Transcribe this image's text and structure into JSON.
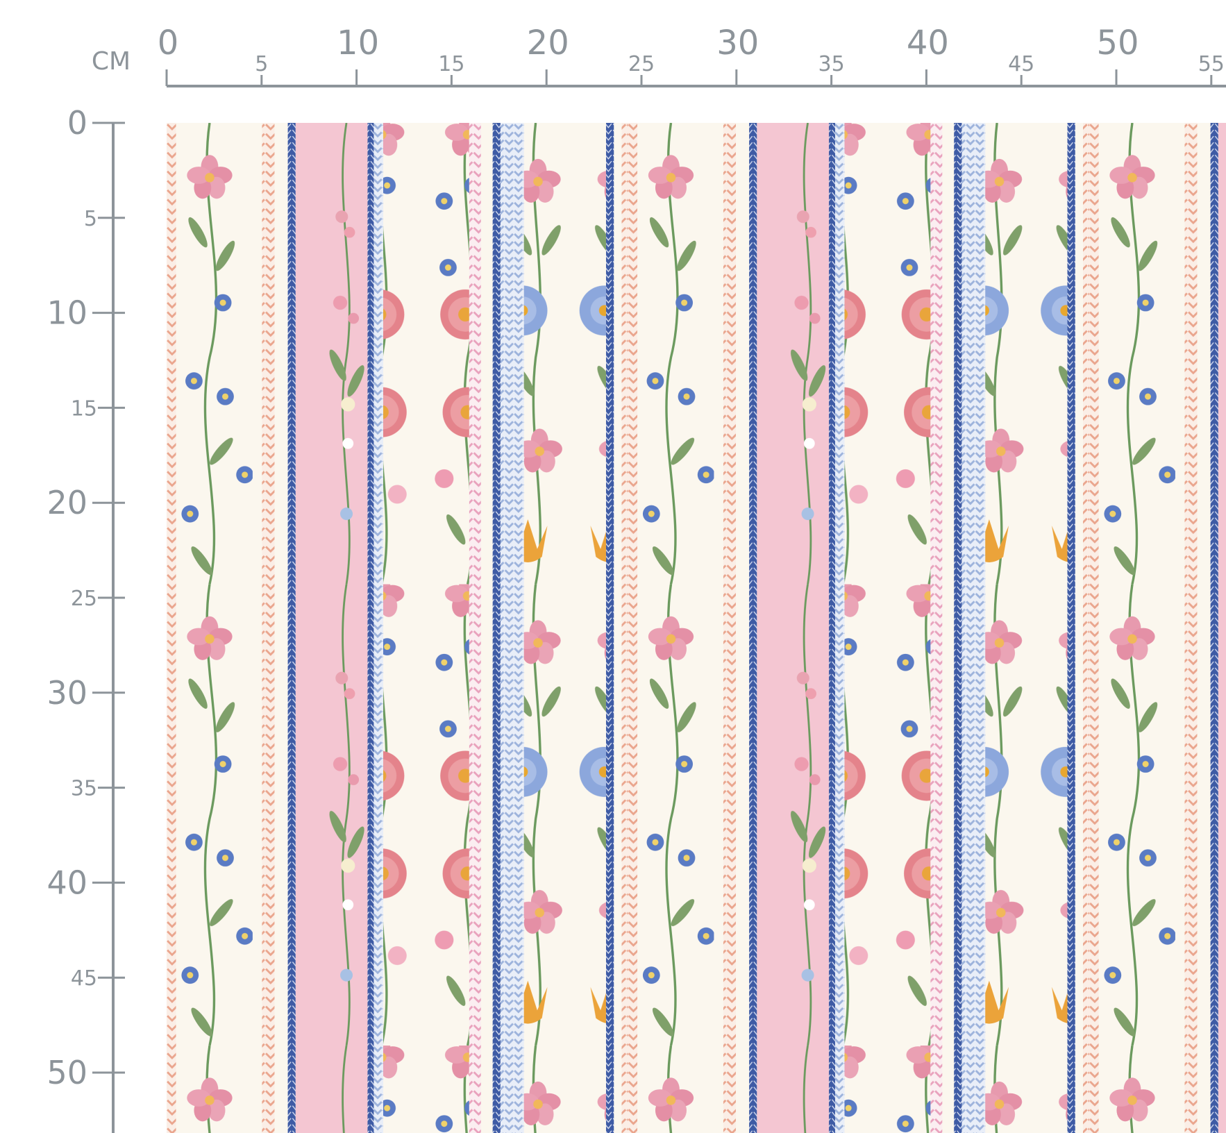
{
  "ruler": {
    "unit": "CM",
    "x_ticks": [
      0,
      5,
      10,
      15,
      20,
      25,
      30,
      35,
      40,
      45,
      50,
      55
    ],
    "y_ticks": [
      0,
      5,
      10,
      15,
      20,
      25,
      30,
      35,
      40,
      45,
      50
    ]
  }
}
